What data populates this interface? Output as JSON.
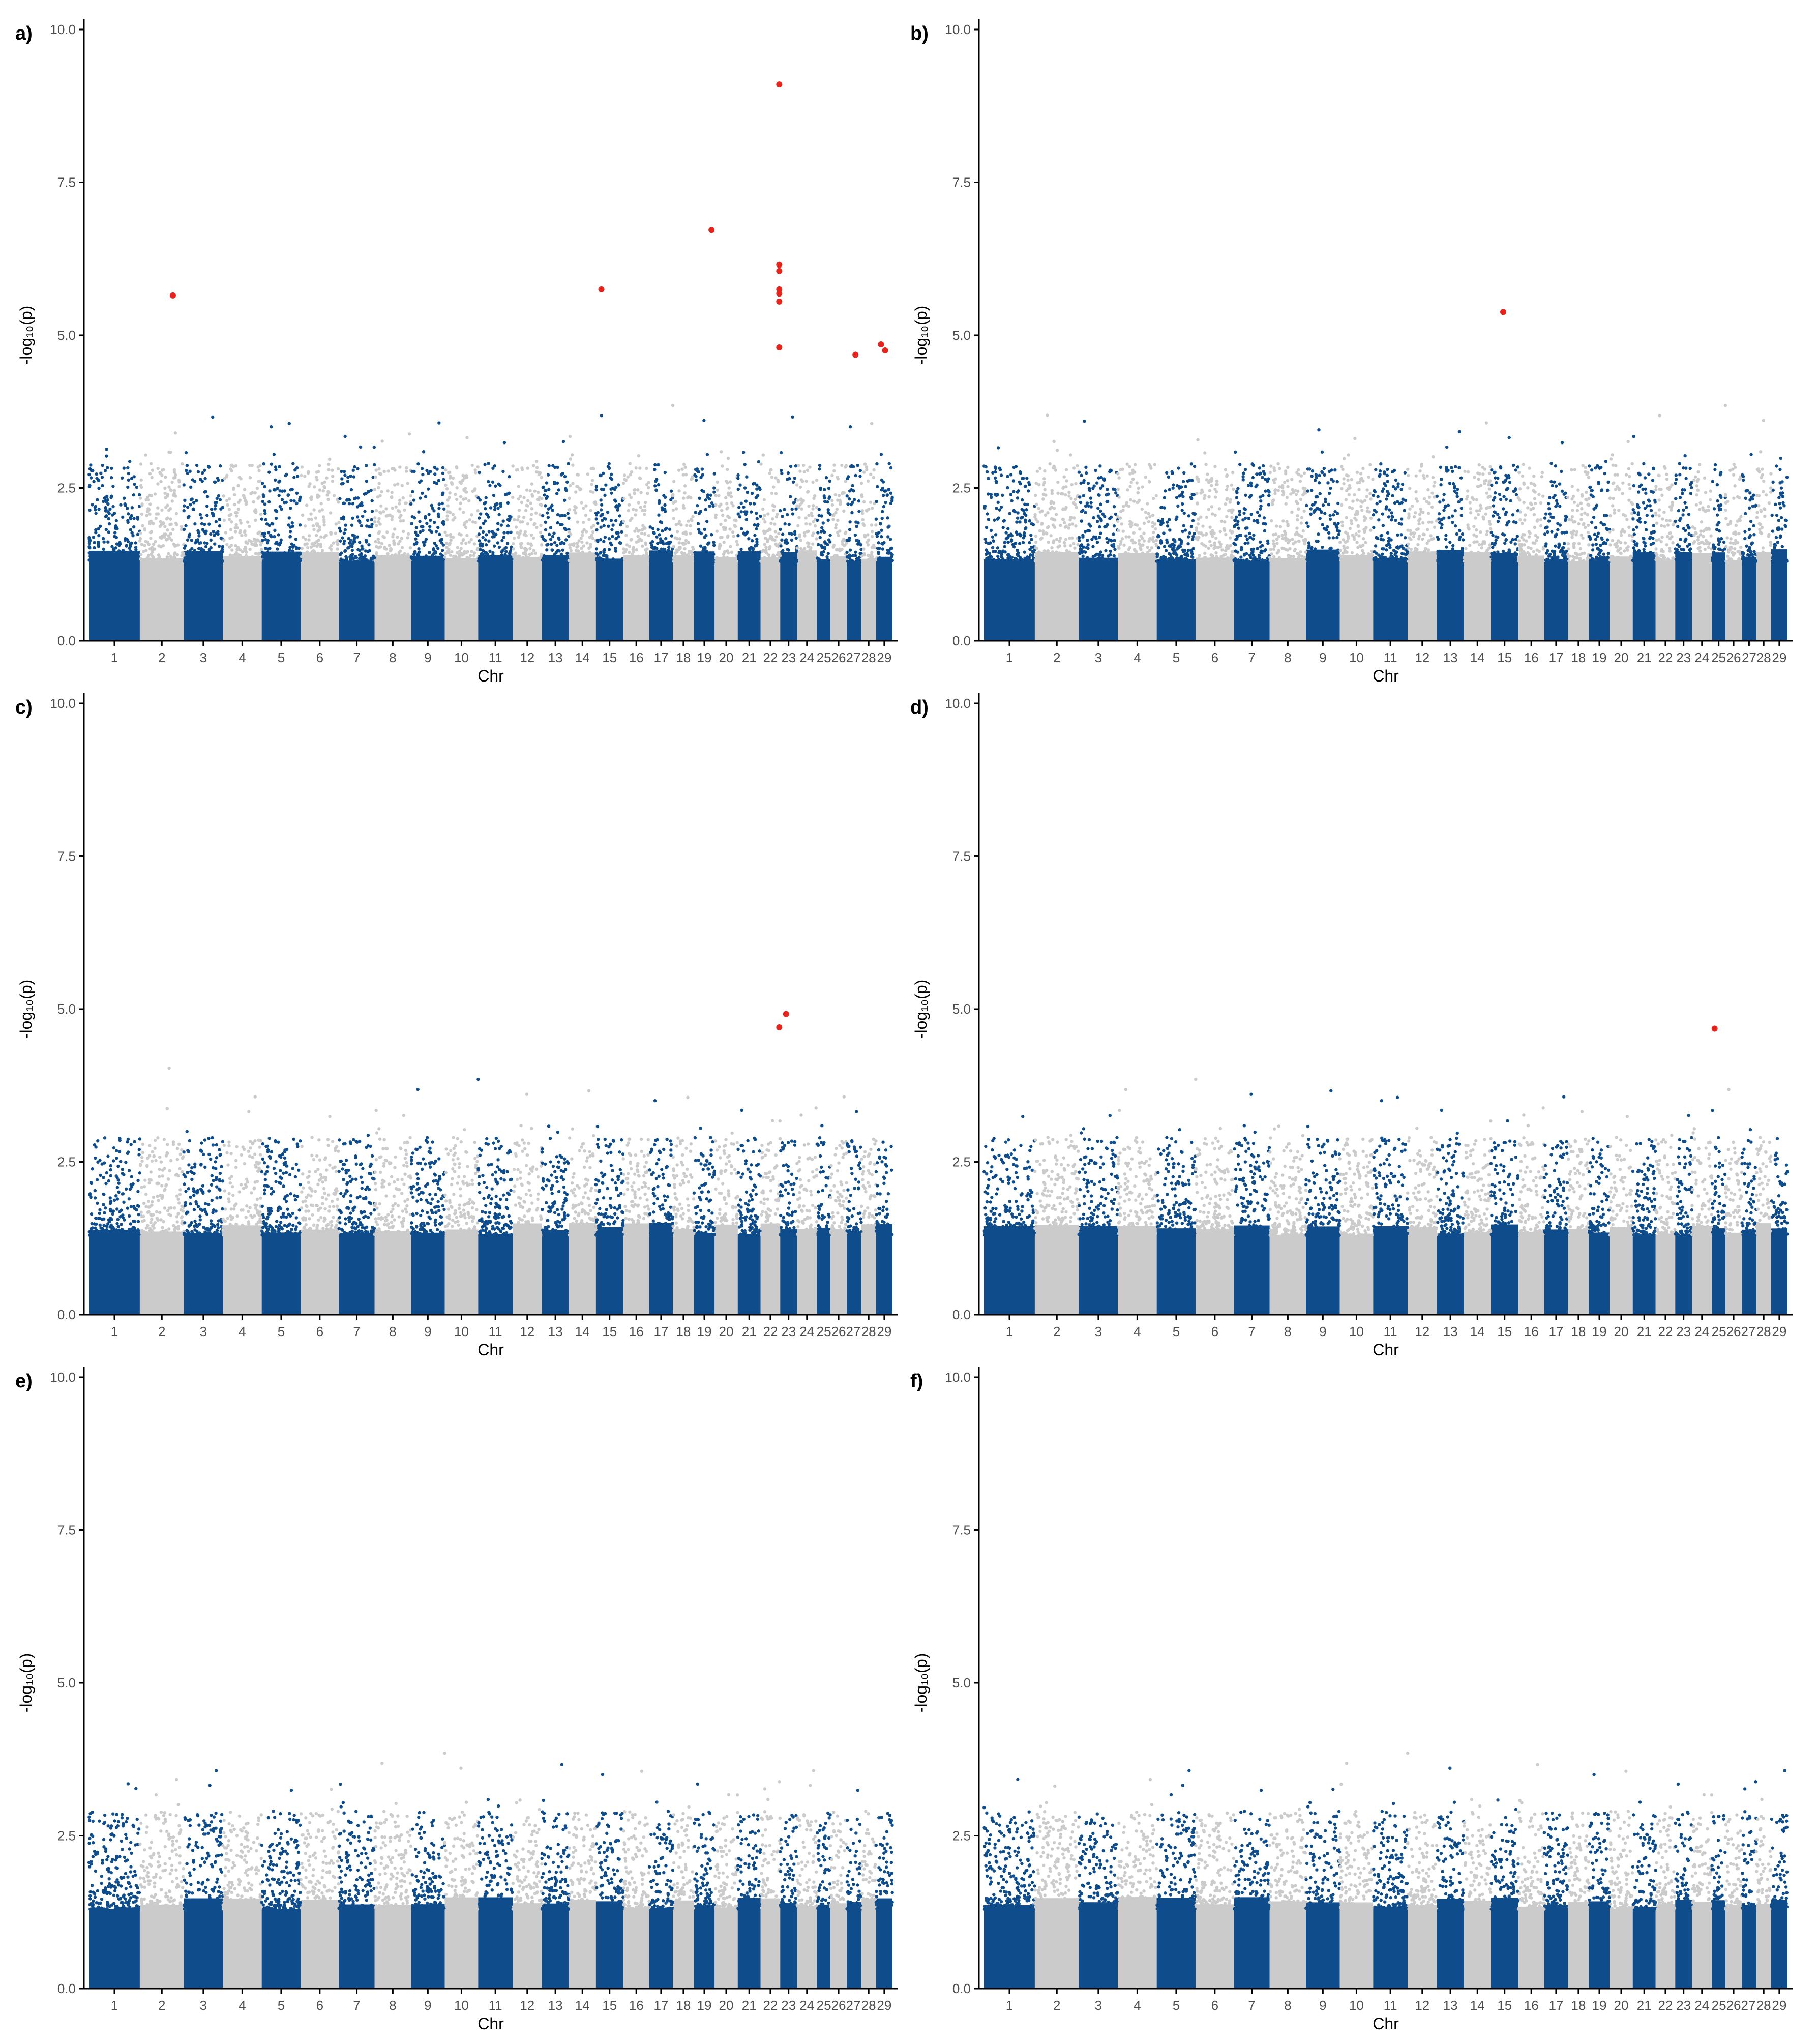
{
  "colors": {
    "odd_chromosome": "#0f4c8c",
    "even_chromosome": "#cbcbcb",
    "significant": "#e6231d",
    "axis": "#000000",
    "tick_label": "#4d4d4d"
  },
  "chart_data": [
    {
      "type": "scatter",
      "panel_label": "a)",
      "xlabel": "Chr",
      "ylabel": "-log₁₀(p)",
      "ylim": [
        0,
        10
      ],
      "y_ticks": [
        "0.0",
        "2.5",
        "5.0",
        "7.5",
        "10.0"
      ],
      "chromosomes": [
        "1",
        "2",
        "3",
        "4",
        "5",
        "6",
        "7",
        "8",
        "9",
        "10",
        "11",
        "12",
        "13",
        "14",
        "15",
        "16",
        "17",
        "18",
        "19",
        "20",
        "21",
        "22",
        "23",
        "24",
        "25",
        "26",
        "27",
        "28",
        "29"
      ],
      "chr_labels": [
        "1",
        "2",
        "3",
        "4",
        "5",
        "6",
        "7",
        "8",
        "9",
        "10",
        "11",
        "12",
        "13",
        "14",
        "15",
        "16",
        "17",
        "18",
        "19",
        "20",
        "21",
        "22",
        "23",
        "24",
        "252627",
        "28",
        "29"
      ],
      "grid": false,
      "significant_points": [
        {
          "chr": 2,
          "pos": 0.75,
          "y": 5.65
        },
        {
          "chr": 15,
          "pos": 0.2,
          "y": 5.75
        },
        {
          "chr": 19,
          "pos": 0.85,
          "y": 6.72
        },
        {
          "chr": 22,
          "pos": 0.95,
          "y": 9.1
        },
        {
          "chr": 22,
          "pos": 0.95,
          "y": 6.15
        },
        {
          "chr": 22,
          "pos": 0.95,
          "y": 6.05
        },
        {
          "chr": 22,
          "pos": 0.95,
          "y": 5.75
        },
        {
          "chr": 22,
          "pos": 0.95,
          "y": 5.68
        },
        {
          "chr": 22,
          "pos": 0.95,
          "y": 5.55
        },
        {
          "chr": 22,
          "pos": 0.95,
          "y": 4.8
        },
        {
          "chr": 27,
          "pos": 0.6,
          "y": 4.68
        },
        {
          "chr": 29,
          "pos": 0.3,
          "y": 4.85
        },
        {
          "chr": 29,
          "pos": 0.55,
          "y": 4.75
        }
      ]
    },
    {
      "type": "scatter",
      "panel_label": "b)",
      "xlabel": "Chr",
      "ylabel": "-log₁₀(p)",
      "ylim": [
        0,
        10
      ],
      "y_ticks": [
        "0.0",
        "2.5",
        "5.0",
        "7.5",
        "10.0"
      ],
      "chromosomes": [
        "1",
        "2",
        "3",
        "4",
        "5",
        "6",
        "7",
        "8",
        "9",
        "10",
        "11",
        "12",
        "13",
        "14",
        "15",
        "16",
        "17",
        "18",
        "19",
        "20",
        "21",
        "22",
        "23",
        "24",
        "25",
        "26",
        "27",
        "28",
        "29"
      ],
      "chr_labels": [
        "1",
        "2",
        "3",
        "4",
        "5",
        "6",
        "7",
        "8",
        "9",
        "10",
        "11",
        "12",
        "13",
        "14",
        "15",
        "16",
        "17",
        "18",
        "19",
        "20",
        "21",
        "22",
        "23",
        "24",
        "25",
        "26",
        "27",
        "28",
        "29"
      ],
      "grid": false,
      "significant_points": [
        {
          "chr": 15,
          "pos": 0.45,
          "y": 5.38
        }
      ]
    },
    {
      "type": "scatter",
      "panel_label": "c)",
      "xlabel": "Chr",
      "ylabel": "-log₁₀(p)",
      "ylim": [
        0,
        10
      ],
      "y_ticks": [
        "0.0",
        "2.5",
        "5.0",
        "7.5",
        "10.0"
      ],
      "chromosomes": [
        "1",
        "2",
        "3",
        "4",
        "5",
        "6",
        "7",
        "8",
        "9",
        "10",
        "11",
        "12",
        "13",
        "14",
        "15",
        "16",
        "17",
        "18",
        "19",
        "20",
        "21",
        "22",
        "23",
        "24",
        "25",
        "26",
        "27",
        "28",
        "29"
      ],
      "chr_labels": [
        "1",
        "2",
        "3",
        "4",
        "5",
        "6",
        "7",
        "8",
        "9",
        "10",
        "11",
        "12",
        "13",
        "14",
        "15",
        "16",
        "17",
        "18",
        "19",
        "20",
        "21",
        "22",
        "23",
        "24",
        "252627",
        "28",
        "29"
      ],
      "grid": false,
      "significant_points": [
        {
          "chr": 22,
          "pos": 0.95,
          "y": 4.7
        },
        {
          "chr": 23,
          "pos": 0.35,
          "y": 4.92
        }
      ]
    },
    {
      "type": "scatter",
      "panel_label": "d)",
      "xlabel": "Chr",
      "ylabel": "-log₁₀(p)",
      "ylim": [
        0,
        10
      ],
      "y_ticks": [
        "0.0",
        "2.5",
        "5.0",
        "7.5",
        "10.0"
      ],
      "chromosomes": [
        "1",
        "2",
        "3",
        "4",
        "5",
        "6",
        "7",
        "8",
        "9",
        "10",
        "11",
        "12",
        "13",
        "14",
        "15",
        "16",
        "17",
        "18",
        "19",
        "20",
        "21",
        "22",
        "23",
        "24",
        "25",
        "26",
        "27",
        "28",
        "29"
      ],
      "chr_labels": [
        "1",
        "2",
        "3",
        "4",
        "5",
        "6",
        "7",
        "8",
        "9",
        "10",
        "11",
        "12",
        "13",
        "14",
        "15",
        "16",
        "17",
        "18",
        "19",
        "20",
        "21",
        "22",
        "23",
        "24",
        "252627",
        "28",
        "29"
      ],
      "grid": false,
      "significant_points": [
        {
          "chr": 25,
          "pos": 0.2,
          "y": 4.68
        }
      ]
    },
    {
      "type": "scatter",
      "panel_label": "e)",
      "xlabel": "Chr",
      "ylabel": "-log₁₀(p)",
      "ylim": [
        0,
        10
      ],
      "y_ticks": [
        "0.0",
        "2.5",
        "5.0",
        "7.5",
        "10.0"
      ],
      "chromosomes": [
        "1",
        "2",
        "3",
        "4",
        "5",
        "6",
        "7",
        "8",
        "9",
        "10",
        "11",
        "12",
        "13",
        "14",
        "15",
        "16",
        "17",
        "18",
        "19",
        "20",
        "21",
        "22",
        "23",
        "24",
        "25",
        "26",
        "27",
        "28",
        "29"
      ],
      "chr_labels": [
        "1",
        "2",
        "3",
        "4",
        "5",
        "6",
        "7",
        "8",
        "9",
        "10",
        "11",
        "12",
        "13",
        "14",
        "15",
        "16",
        "17",
        "18",
        "19",
        "20",
        "21",
        "22",
        "23",
        "24",
        "252627",
        "28",
        "29"
      ],
      "grid": false,
      "significant_points": []
    },
    {
      "type": "scatter",
      "panel_label": "f)",
      "xlabel": "Chr",
      "ylabel": "-log₁₀(p)",
      "ylim": [
        0,
        10
      ],
      "y_ticks": [
        "0.0",
        "2.5",
        "5.0",
        "7.5",
        "10.0"
      ],
      "chromosomes": [
        "1",
        "2",
        "3",
        "4",
        "5",
        "6",
        "7",
        "8",
        "9",
        "10",
        "11",
        "12",
        "13",
        "14",
        "15",
        "16",
        "17",
        "18",
        "19",
        "20",
        "21",
        "22",
        "23",
        "24",
        "25",
        "26",
        "27",
        "28",
        "29"
      ],
      "chr_labels": [
        "1",
        "2",
        "3",
        "4",
        "5",
        "6",
        "7",
        "8",
        "9",
        "10",
        "11",
        "12",
        "13",
        "14",
        "15",
        "16",
        "17",
        "18",
        "19",
        "20",
        "21",
        "22",
        "23",
        "24",
        "252627",
        "28",
        "29"
      ],
      "grid": false,
      "significant_points": []
    }
  ]
}
